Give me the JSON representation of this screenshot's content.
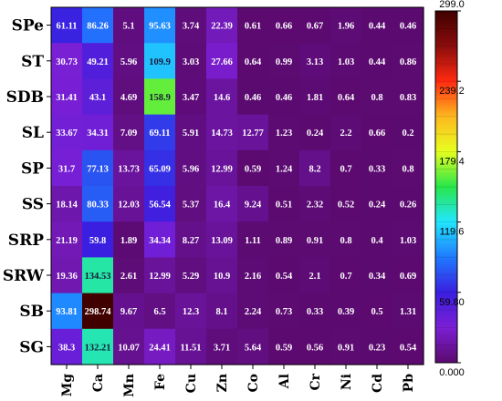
{
  "chart_data": {
    "type": "heatmap",
    "title": "",
    "xlabel": "",
    "ylabel": "",
    "columns": [
      "Mg",
      "Ca",
      "Mn",
      "Fe",
      "Cu",
      "Zn",
      "Co",
      "Al",
      "Cr",
      "Ni",
      "Cd",
      "Pb"
    ],
    "rows": [
      "SPe",
      "ST",
      "SDB",
      "SL",
      "SP",
      "SS",
      "SRP",
      "SRW",
      "SB",
      "SG"
    ],
    "values": [
      [
        61.11,
        86.26,
        5.1,
        95.63,
        3.74,
        22.39,
        0.61,
        0.66,
        0.67,
        1.96,
        0.44,
        0.46
      ],
      [
        30.73,
        49.21,
        5.96,
        109.9,
        3.03,
        27.66,
        0.64,
        0.99,
        3.13,
        1.03,
        0.44,
        0.86
      ],
      [
        31.41,
        43.1,
        4.69,
        158.9,
        3.47,
        14.6,
        0.46,
        0.46,
        1.81,
        0.64,
        0.8,
        0.83
      ],
      [
        33.67,
        34.31,
        7.09,
        69.11,
        5.91,
        14.73,
        12.77,
        1.23,
        0.24,
        2.2,
        0.66,
        0.2
      ],
      [
        31.7,
        77.13,
        13.73,
        65.09,
        5.96,
        12.99,
        0.59,
        1.24,
        8.2,
        0.7,
        0.33,
        0.8
      ],
      [
        18.14,
        80.33,
        12.03,
        56.54,
        5.37,
        16.4,
        9.24,
        0.51,
        2.32,
        0.52,
        0.24,
        0.26
      ],
      [
        21.19,
        59.8,
        1.89,
        34.34,
        8.27,
        13.09,
        1.11,
        0.89,
        0.91,
        0.8,
        0.4,
        1.03
      ],
      [
        19.36,
        134.53,
        2.61,
        12.99,
        5.29,
        10.9,
        2.16,
        0.54,
        2.1,
        0.7,
        0.34,
        0.69
      ],
      [
        93.81,
        298.74,
        9.67,
        6.5,
        12.3,
        8.1,
        2.24,
        0.73,
        0.33,
        0.39,
        0.5,
        1.31
      ],
      [
        38.3,
        132.21,
        10.07,
        24.41,
        11.51,
        3.71,
        5.64,
        0.59,
        0.56,
        0.91,
        0.23,
        0.54
      ]
    ],
    "value_labels": [
      [
        "61.11",
        "86.26",
        "5.1",
        "95.63",
        "3.74",
        "22.39",
        "0.61",
        "0.66",
        "0.67",
        "1.96",
        "0.44",
        "0.46"
      ],
      [
        "30.73",
        "49.21",
        "5.96",
        "109.9",
        "3.03",
        "27.66",
        "0.64",
        "0.99",
        "3.13",
        "1.03",
        "0.44",
        "0.86"
      ],
      [
        "31.41",
        "43.1",
        "4.69",
        "158.9",
        "3.47",
        "14.6",
        "0.46",
        "0.46",
        "1.81",
        "0.64",
        "0.8",
        "0.83"
      ],
      [
        "33.67",
        "34.31",
        "7.09",
        "69.11",
        "5.91",
        "14.73",
        "12.77",
        "1.23",
        "0.24",
        "2.2",
        "0.66",
        "0.2"
      ],
      [
        "31.7",
        "77.13",
        "13.73",
        "65.09",
        "5.96",
        "12.99",
        "0.59",
        "1.24",
        "8.2",
        "0.7",
        "0.33",
        "0.8"
      ],
      [
        "18.14",
        "80.33",
        "12.03",
        "56.54",
        "5.37",
        "16.4",
        "9.24",
        "0.51",
        "2.32",
        "0.52",
        "0.24",
        "0.26"
      ],
      [
        "21.19",
        "59.8",
        "1.89",
        "34.34",
        "8.27",
        "13.09",
        "1.11",
        "0.89",
        "0.91",
        "0.8",
        "0.4",
        "1.03"
      ],
      [
        "19.36",
        "134.53",
        "2.61",
        "12.99",
        "5.29",
        "10.9",
        "2.16",
        "0.54",
        "2.1",
        "0.7",
        "0.34",
        "0.69"
      ],
      [
        "93.81",
        "298.74",
        "9.67",
        "6.5",
        "12.3",
        "8.1",
        "2.24",
        "0.73",
        "0.33",
        "0.39",
        "0.5",
        "1.31"
      ],
      [
        "38.3",
        "132.21",
        "10.07",
        "24.41",
        "11.51",
        "3.71",
        "5.64",
        "0.59",
        "0.56",
        "0.91",
        "0.23",
        "0.54"
      ]
    ],
    "colorbar": {
      "min": 0,
      "max": 299,
      "ticks": [
        "0.000",
        "59.80",
        "119.6",
        "179.4",
        "239.2",
        "299.0"
      ],
      "colors": [
        "#5b0a6e",
        "#7b1fd4",
        "#3a1fe0",
        "#1f7aff",
        "#22e6ff",
        "#28e64a",
        "#e6ff1f",
        "#ffb81f",
        "#ff2a10",
        "#8a0c0c",
        "#400000"
      ]
    },
    "legend": "right",
    "grid": false
  }
}
